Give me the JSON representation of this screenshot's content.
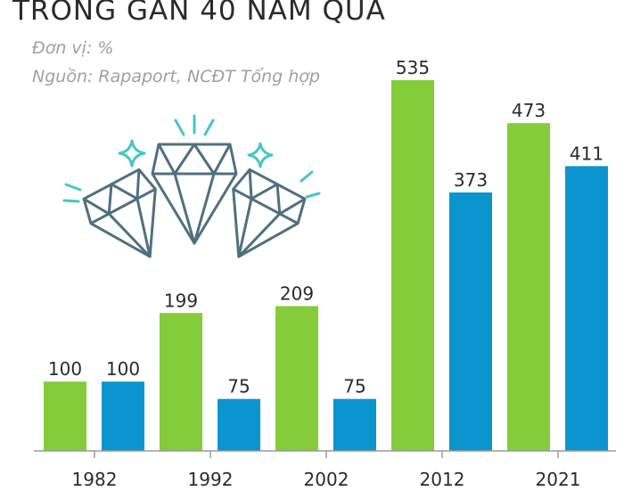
{
  "title": "TRONG GẦN 40 NĂM QUA",
  "unit_line": "Đơn vị: %",
  "source_line": "Nguồn: Rapaport, NCĐT Tổng hợp",
  "colors": {
    "green": "#84cc3a",
    "blue": "#0a95cf",
    "text": "#2b2b2b",
    "muted": "#a0a0a0",
    "diamond": "#50707e",
    "sparkle": "#47c7c3"
  },
  "chart_data": {
    "type": "bar",
    "categories": [
      "1982",
      "1992",
      "2002",
      "2012",
      "2021"
    ],
    "series": [
      {
        "values": [
          100,
          199,
          209,
          535,
          473
        ]
      },
      {
        "values": [
          100,
          75,
          75,
          373,
          411
        ]
      }
    ],
    "ylim": [
      0,
      535
    ],
    "grid": false,
    "legend": "none"
  }
}
